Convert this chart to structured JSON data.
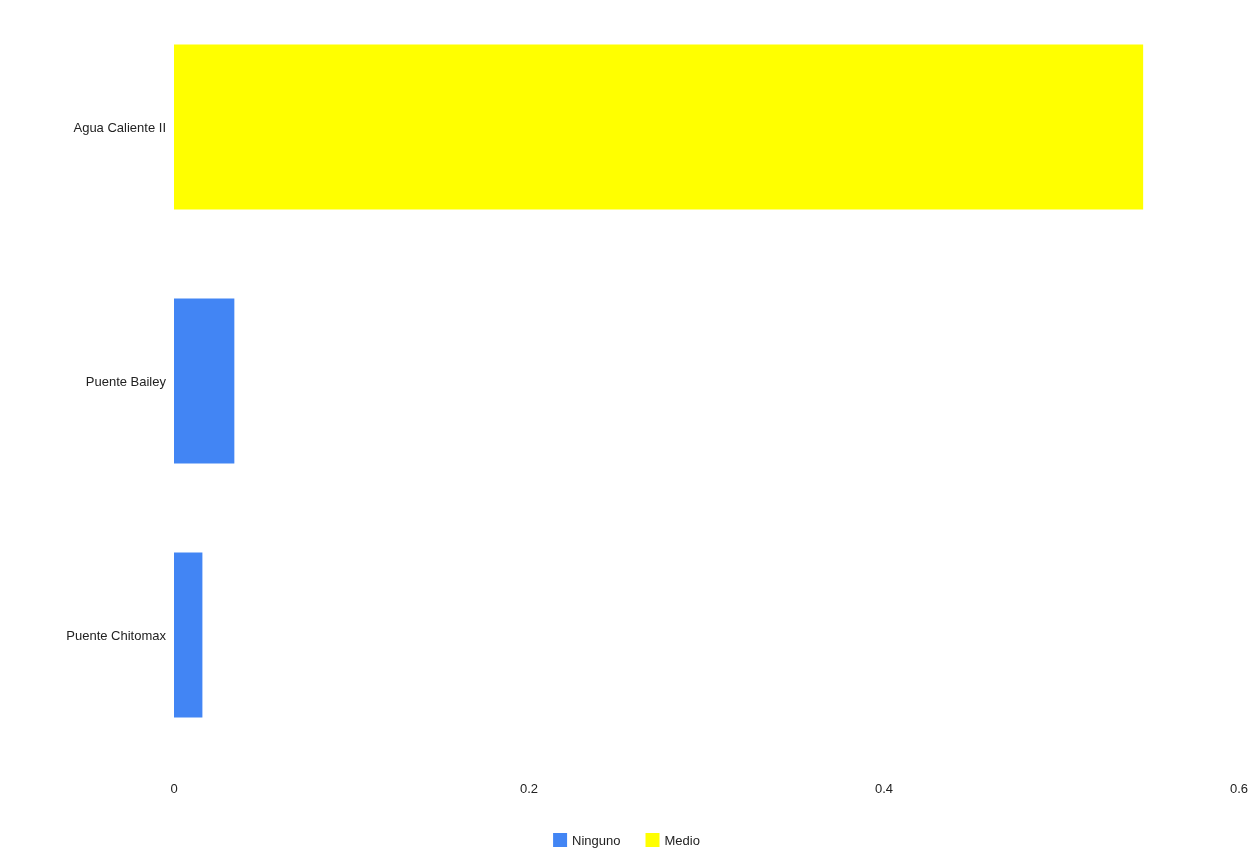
{
  "chart_data": {
    "type": "bar",
    "orientation": "horizontal",
    "stacked": true,
    "categories": [
      "Agua Caliente II",
      "Puente Bailey",
      "Puente Chitomax"
    ],
    "series": [
      {
        "name": "Ninguno",
        "color": "#4285f4",
        "values": [
          null,
          0.034,
          0.016
        ]
      },
      {
        "name": "Medio",
        "color": "#ffff00",
        "values": [
          0.546,
          null,
          null
        ]
      }
    ],
    "xlim": [
      0,
      0.6
    ],
    "xticks": [
      0,
      0.2,
      0.4,
      0.6
    ],
    "grid": false,
    "legend": "bottom"
  }
}
